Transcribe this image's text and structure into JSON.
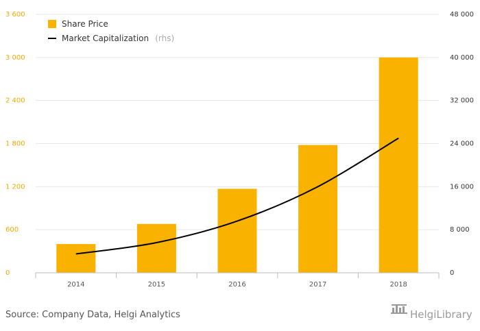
{
  "colors": {
    "bar": "#f9b200",
    "line": "#000000",
    "grid": "#e6e6e6",
    "left_axis_text": "#f2a900",
    "right_axis_text": "#333333",
    "brand": "#9a9a9a"
  },
  "legend": {
    "bar_label": "Share Price",
    "line_label": "Market Capitalization",
    "line_suffix": "(rhs)"
  },
  "source": "Source: Company Data, Helgi Analytics",
  "brand": {
    "icon": "helgi-building-logo",
    "name": "HelgiLibrary"
  },
  "chart_data": {
    "type": "bar",
    "categories": [
      "2014",
      "2015",
      "2016",
      "2017",
      "2018"
    ],
    "series": [
      {
        "name": "Share Price",
        "type": "bar",
        "axis": "left",
        "values": [
          400,
          680,
          1170,
          1780,
          3000
        ]
      },
      {
        "name": "Market Capitalization",
        "type": "line",
        "axis": "right",
        "values": [
          3500,
          5600,
          9600,
          16000,
          25000
        ]
      }
    ],
    "y_left": {
      "range": [
        0,
        3600
      ],
      "ticks": [
        0,
        600,
        1200,
        1800,
        2400,
        3000,
        3600
      ],
      "tick_labels": [
        "0",
        "600",
        "1 200",
        "1 800",
        "2 400",
        "3 000",
        "3 600"
      ]
    },
    "y_right": {
      "range": [
        0,
        48000
      ],
      "ticks": [
        0,
        8000,
        16000,
        24000,
        32000,
        40000,
        48000
      ],
      "tick_labels": [
        "0",
        "8 000",
        "16 000",
        "24 000",
        "32 000",
        "40 000",
        "48 000"
      ]
    },
    "grid": true,
    "legend_position": "top-left"
  }
}
